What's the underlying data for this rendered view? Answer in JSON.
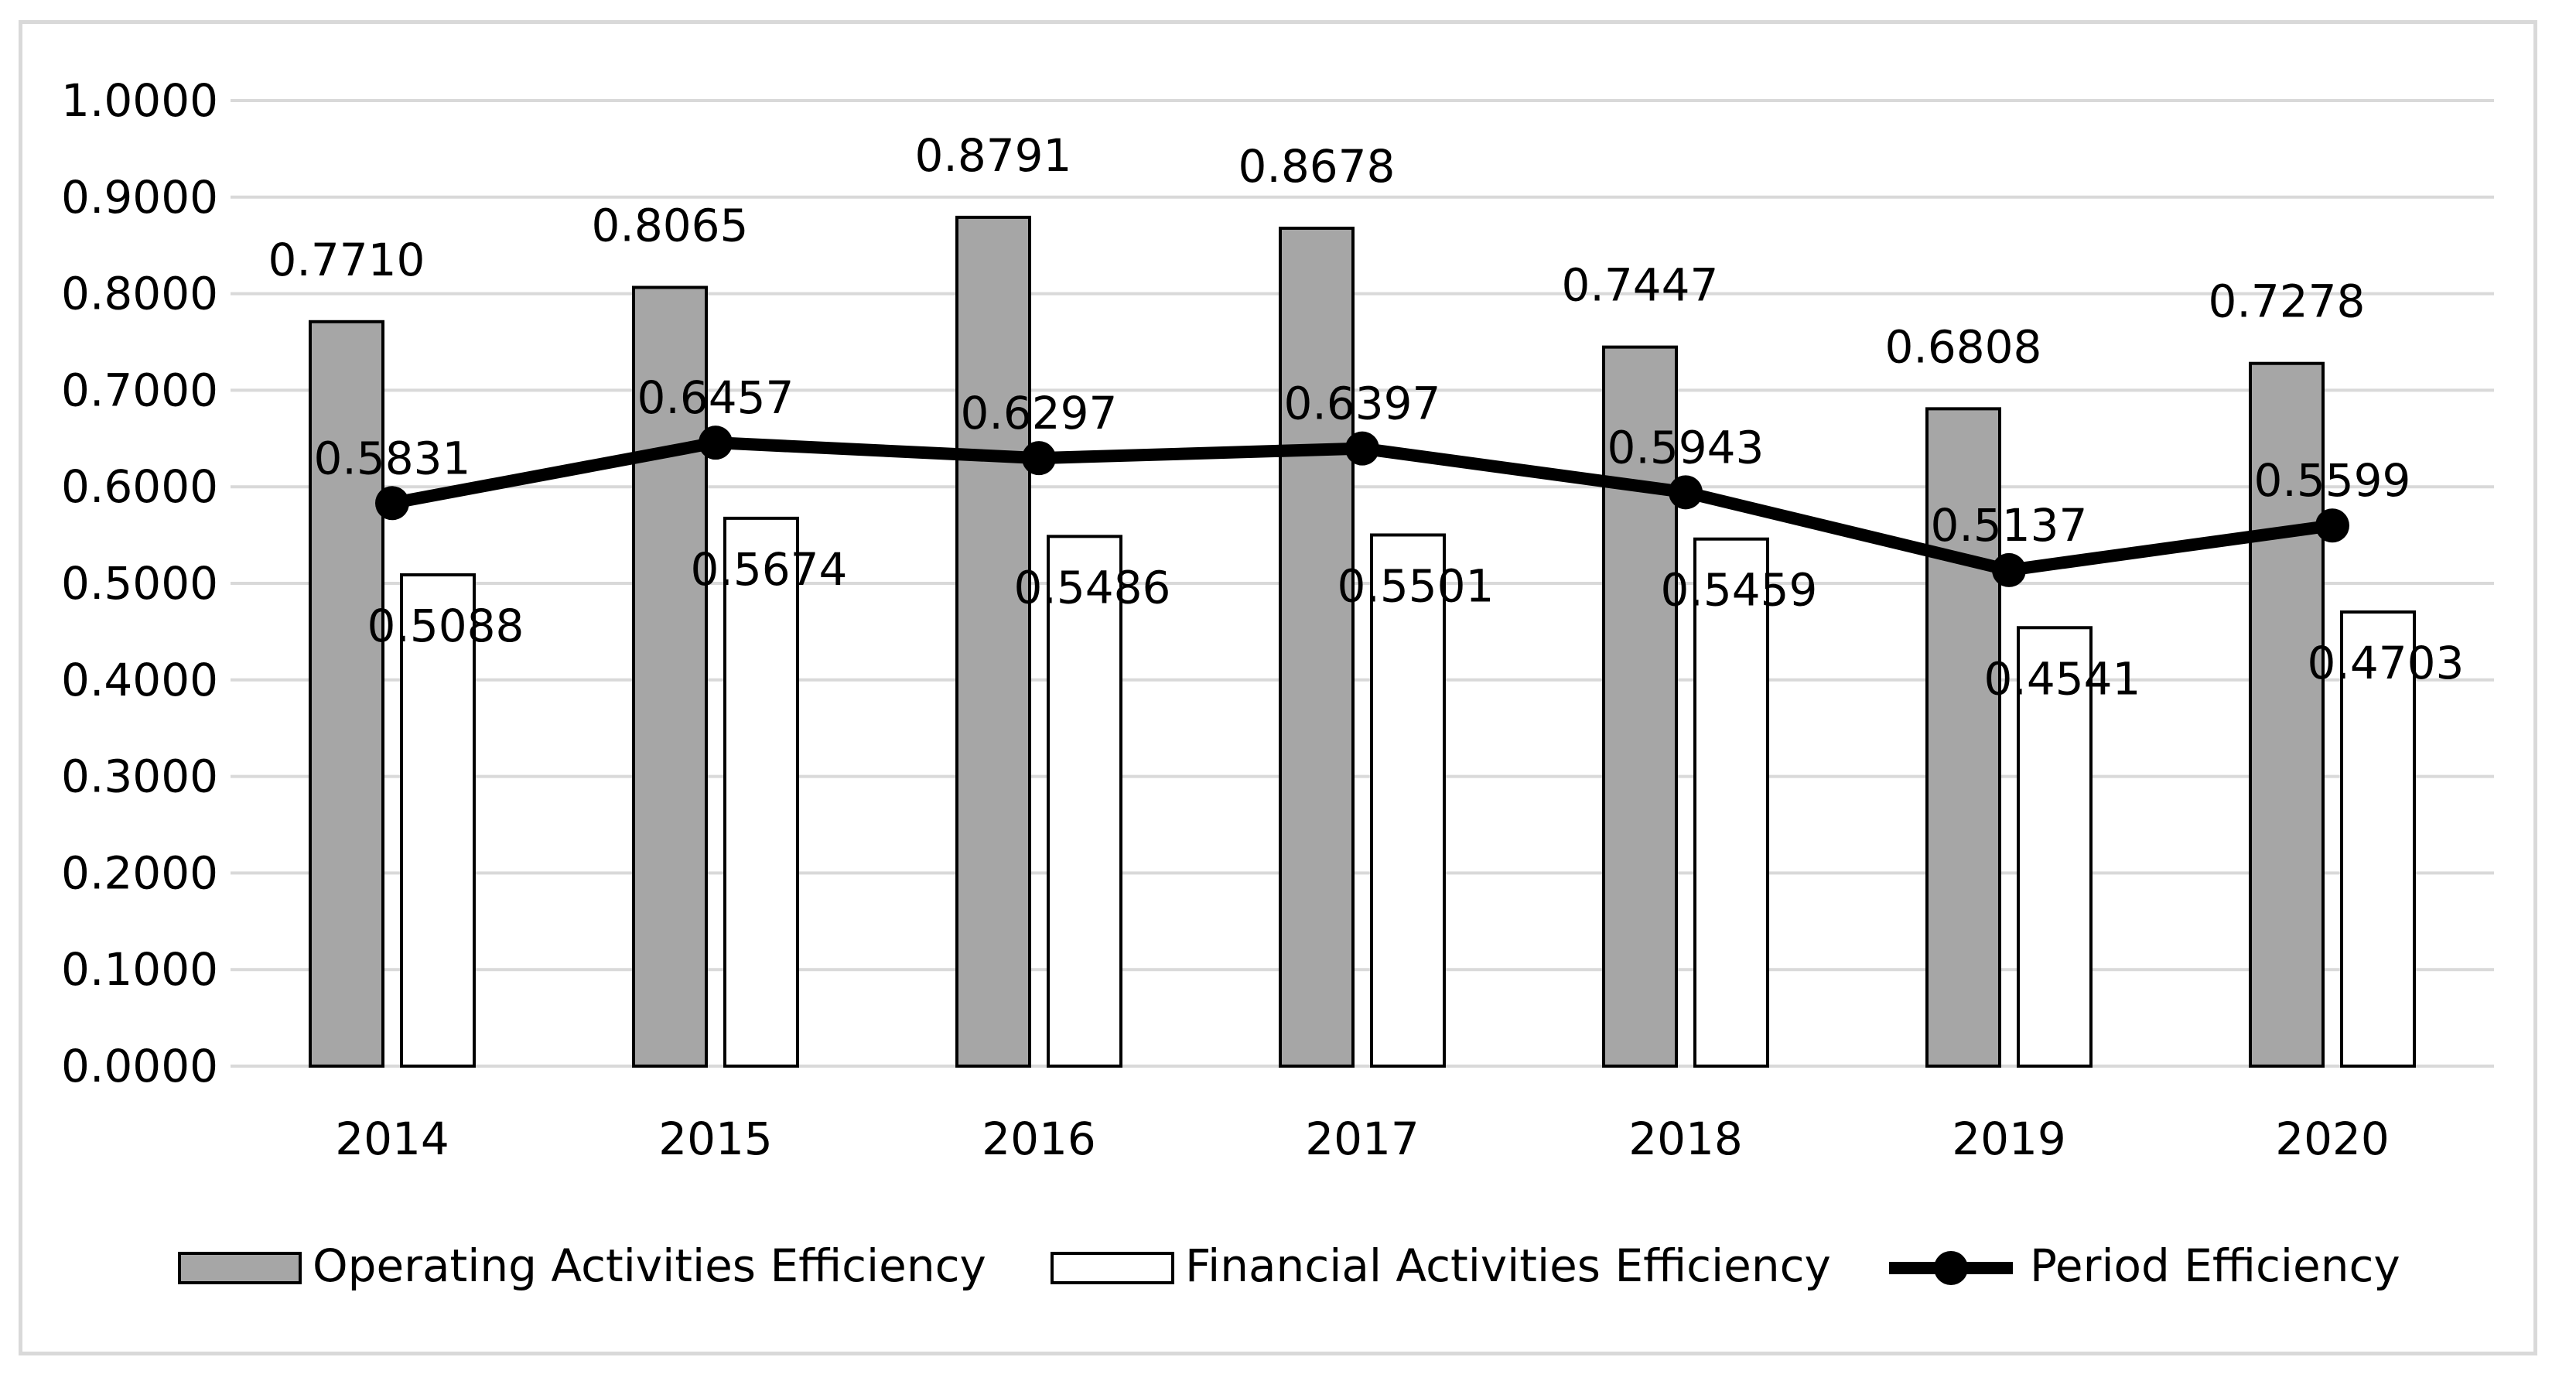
{
  "colors": {
    "background": "#ffffff",
    "frame": "#d9d9d9",
    "gridline": "#d9d9d9",
    "operating_fill": "#a6a6a6",
    "financial_fill": "#ffffff",
    "outline": "#000000",
    "line": "#000000"
  },
  "chart_data": {
    "type": "bar+line",
    "title": "",
    "xlabel": "",
    "ylabel": "",
    "categories": [
      "2014",
      "2015",
      "2016",
      "2017",
      "2018",
      "2019",
      "2020"
    ],
    "ylim": [
      0,
      1
    ],
    "yticks": [
      "0.0000",
      "0.1000",
      "0.2000",
      "0.3000",
      "0.4000",
      "0.5000",
      "0.6000",
      "0.7000",
      "0.8000",
      "0.9000",
      "1.0000"
    ],
    "ytick_values": [
      0,
      0.1,
      0.2,
      0.3,
      0.4,
      0.5,
      0.6,
      0.7,
      0.8,
      0.9,
      1.0
    ],
    "grid": true,
    "legend_position": "bottom",
    "series": [
      {
        "name": "Operating Activities Efficiency",
        "type": "bar",
        "values": [
          0.771,
          0.8065,
          0.8791,
          0.8678,
          0.7447,
          0.6808,
          0.7278
        ],
        "labels": [
          "0.7710",
          "0.8065",
          "0.8791",
          "0.8678",
          "0.7447",
          "0.6808",
          "0.7278"
        ]
      },
      {
        "name": "Financial Activities Efficiency",
        "type": "bar",
        "values": [
          0.5088,
          0.5674,
          0.5486,
          0.5501,
          0.5459,
          0.4541,
          0.4703
        ],
        "labels": [
          "0.5088",
          "0.5674",
          "0.5486",
          "0.5501",
          "0.5459",
          "0.4541",
          "0.4703"
        ]
      },
      {
        "name": "Period Efficiency",
        "type": "line",
        "values": [
          0.5831,
          0.6457,
          0.6297,
          0.6397,
          0.5943,
          0.5137,
          0.5599
        ],
        "labels": [
          "0.5831",
          "0.6457",
          "0.6297",
          "0.6397",
          "0.5943",
          "0.5137",
          "0.5599"
        ]
      }
    ]
  }
}
